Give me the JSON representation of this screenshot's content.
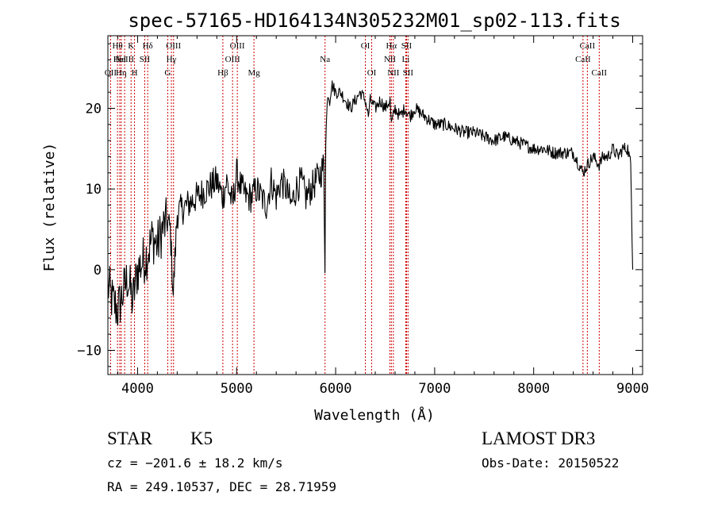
{
  "chart_data": {
    "type": "line",
    "title": "spec-57165-HD164134N305232M01_sp02-113.fits",
    "xlabel": "Wavelength (Å)",
    "ylabel": "Flux (relative)",
    "xlim": [
      3700,
      9100
    ],
    "ylim": [
      -13,
      29
    ],
    "xticks": [
      {
        "value": 4000,
        "label": "4000"
      },
      {
        "value": 5000,
        "label": "5000"
      },
      {
        "value": 6000,
        "label": "6000"
      },
      {
        "value": 7000,
        "label": "7000"
      },
      {
        "value": 8000,
        "label": "8000"
      },
      {
        "value": 9000,
        "label": "9000"
      }
    ],
    "yticks": [
      {
        "value": -10,
        "label": "−10"
      },
      {
        "value": 0,
        "label": "0"
      },
      {
        "value": 10,
        "label": "10"
      },
      {
        "value": 20,
        "label": "20"
      }
    ],
    "series": [
      {
        "name": "spectrum",
        "x": [
          3700,
          3750,
          3800,
          3850,
          3900,
          3950,
          4000,
          4050,
          4100,
          4150,
          4200,
          4250,
          4300,
          4330,
          4360,
          4400,
          4500,
          4600,
          4700,
          4800,
          4860,
          4900,
          4960,
          5000,
          5050,
          5100,
          5150,
          5200,
          5250,
          5300,
          5350,
          5400,
          5450,
          5500,
          5550,
          5600,
          5650,
          5700,
          5750,
          5800,
          5850,
          5880,
          5892,
          5900,
          5910,
          5920,
          5940,
          5960,
          6000,
          6050,
          6100,
          6150,
          6200,
          6250,
          6300,
          6330,
          6350,
          6400,
          6450,
          6500,
          6550,
          6563,
          6600,
          6650,
          6700,
          6750,
          6800,
          6900,
          7000,
          7100,
          7200,
          7300,
          7400,
          7500,
          7600,
          7700,
          7800,
          7900,
          8000,
          8100,
          8200,
          8300,
          8400,
          8498,
          8542,
          8600,
          8662,
          8700,
          8750,
          8800,
          8850,
          8900,
          8950,
          8980,
          9000
        ],
        "y": [
          -2,
          -4,
          -5,
          -3,
          -1,
          -4,
          0,
          1,
          2,
          4,
          3,
          5,
          6,
          5,
          -3,
          7,
          8,
          9,
          10,
          11,
          9,
          11,
          8,
          12,
          10,
          9,
          9,
          10,
          9,
          8,
          11,
          9,
          11,
          10,
          8,
          10,
          11,
          9,
          10,
          11,
          12,
          13,
          1,
          16,
          19,
          22,
          21,
          23,
          22,
          22,
          21,
          20,
          21,
          22,
          21,
          19,
          21,
          20,
          21,
          20,
          21,
          18,
          20,
          19,
          20,
          19,
          20,
          19,
          18,
          18,
          17.5,
          17,
          17,
          16.5,
          16,
          16.5,
          16,
          15.5,
          15,
          15,
          14.5,
          14.5,
          14.5,
          12,
          13,
          14,
          13,
          14,
          14,
          15,
          14,
          15,
          15,
          13,
          0
        ]
      }
    ],
    "lines": [
      {
        "wavelength": 3727,
        "label": "OII",
        "row": 3
      },
      {
        "wavelength": 3797,
        "label": "Hθ",
        "row": 1
      },
      {
        "wavelength": 3820,
        "label": "HeI",
        "row": 2
      },
      {
        "wavelength": 3835,
        "label": "Hη",
        "row": 3
      },
      {
        "wavelength": 3869,
        "label": "NeIII",
        "row": 2
      },
      {
        "wavelength": 3934,
        "label": "K",
        "row": 1
      },
      {
        "wavelength": 3969,
        "label": "H",
        "row": 3
      },
      {
        "wavelength": 4072,
        "label": "SII",
        "row": 2
      },
      {
        "wavelength": 4102,
        "label": "Hδ",
        "row": 1
      },
      {
        "wavelength": 4304,
        "label": "G",
        "row": 3
      },
      {
        "wavelength": 4341,
        "label": "Hγ",
        "row": 2
      },
      {
        "wavelength": 4363,
        "label": "OIII",
        "row": 1
      },
      {
        "wavelength": 4861,
        "label": "Hβ",
        "row": 3
      },
      {
        "wavelength": 4959,
        "label": "OIII",
        "row": 2
      },
      {
        "wavelength": 5007,
        "label": "OIII",
        "row": 1
      },
      {
        "wavelength": 5175,
        "label": "Mg",
        "row": 3
      },
      {
        "wavelength": 5893,
        "label": "Na",
        "row": 2
      },
      {
        "wavelength": 6300,
        "label": "OI",
        "row": 1
      },
      {
        "wavelength": 6364,
        "label": "OI",
        "row": 3
      },
      {
        "wavelength": 6548,
        "label": "NII",
        "row": 2
      },
      {
        "wavelength": 6563,
        "label": "Hα",
        "row": 1
      },
      {
        "wavelength": 6583,
        "label": "NII",
        "row": 3
      },
      {
        "wavelength": 6708,
        "label": "Li",
        "row": 2
      },
      {
        "wavelength": 6716,
        "label": "SII",
        "row": 1
      },
      {
        "wavelength": 6731,
        "label": "SII",
        "row": 3
      },
      {
        "wavelength": 8498,
        "label": "CaII",
        "row": 2
      },
      {
        "wavelength": 8542,
        "label": "CaII",
        "row": 1
      },
      {
        "wavelength": 8662,
        "label": "CaII",
        "row": 3
      }
    ],
    "line_color": "#cc0000"
  },
  "info": {
    "class": "STAR",
    "subclass": "K5",
    "survey": "LAMOST DR3",
    "cz": "cz = −201.6 ± 18.2 km/s",
    "obs_date": "Obs-Date: 20150522",
    "coords": "RA = 249.10537, DEC =  28.71959"
  }
}
